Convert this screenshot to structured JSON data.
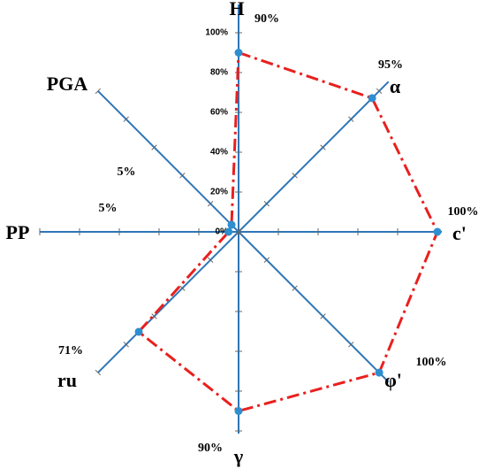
{
  "chart_data": {
    "type": "radar",
    "categories": [
      "H",
      "α",
      "c'",
      "φ'",
      "γ",
      "ru",
      "PP",
      "PGA"
    ],
    "values": [
      90,
      95,
      100,
      100,
      90,
      71,
      5,
      5
    ],
    "value_labels": [
      "90%",
      "95%",
      "100%",
      "100%",
      "90%",
      "71%",
      "5%",
      "5%"
    ],
    "rlim": [
      0,
      100
    ],
    "rticks": [
      {
        "value": 0,
        "label": "0%"
      },
      {
        "value": 20,
        "label": "20%"
      },
      {
        "value": 40,
        "label": "40%"
      },
      {
        "value": 60,
        "label": "60%"
      },
      {
        "value": 80,
        "label": "80%"
      },
      {
        "value": 100,
        "label": "100%"
      }
    ],
    "axis_color": "#2e75b6",
    "line_color": "#e8201e",
    "marker_color": "#2e8fd0"
  }
}
